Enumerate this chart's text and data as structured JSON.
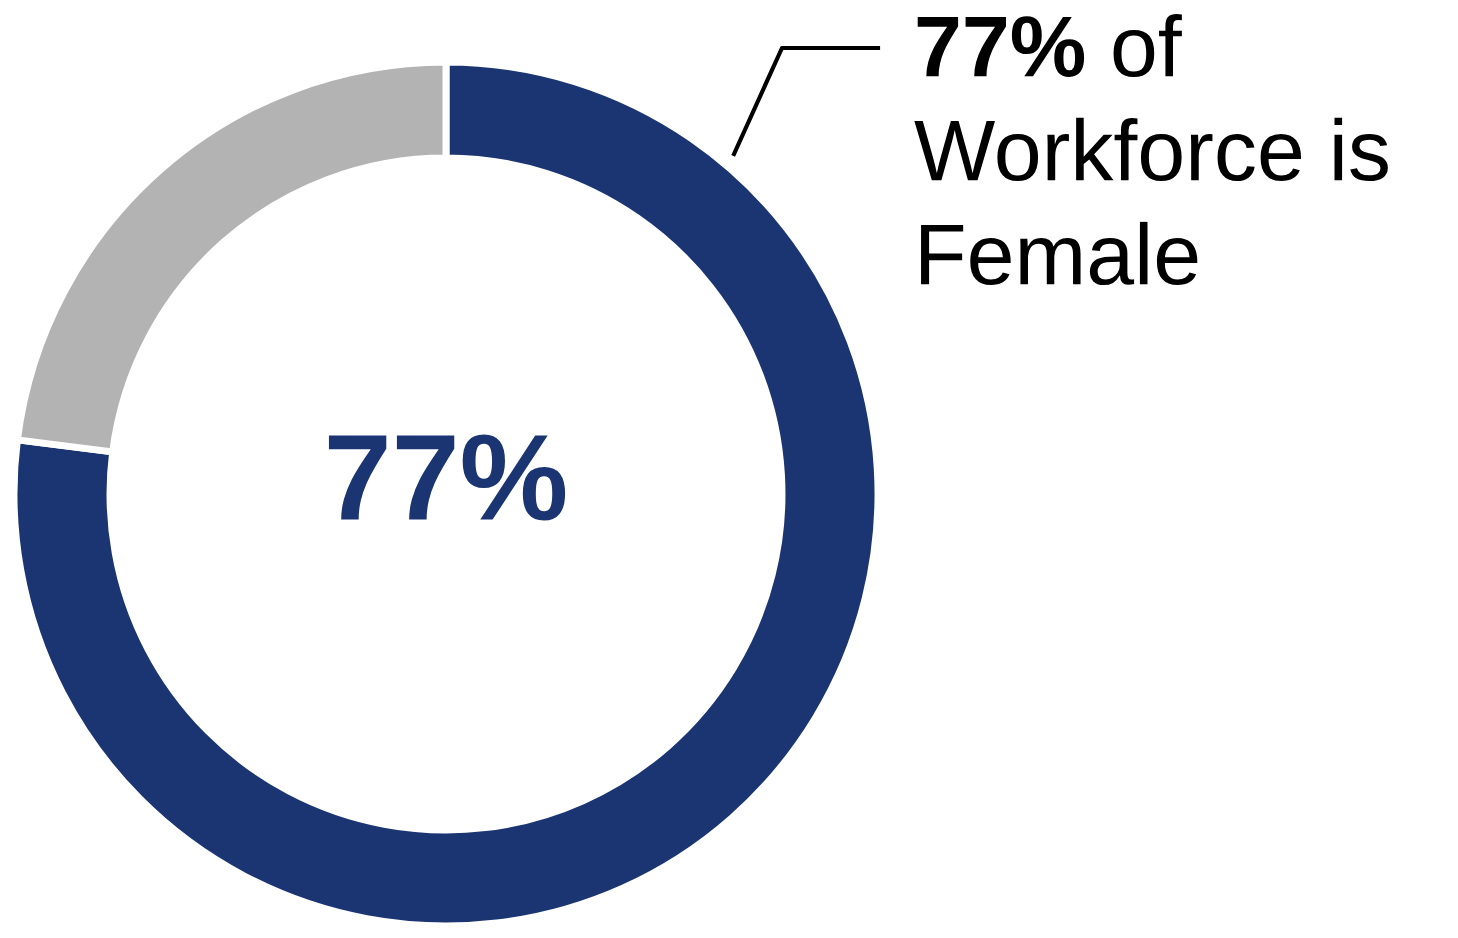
{
  "chart_data": {
    "type": "donut",
    "categories": [
      null,
      null
    ],
    "values": [
      77,
      23
    ],
    "colors": [
      "#1b3572",
      "#b3b3b3"
    ],
    "value_labels": [
      "77%",
      null
    ],
    "annotations": [
      "77% of Workforce is Female"
    ]
  }
}
